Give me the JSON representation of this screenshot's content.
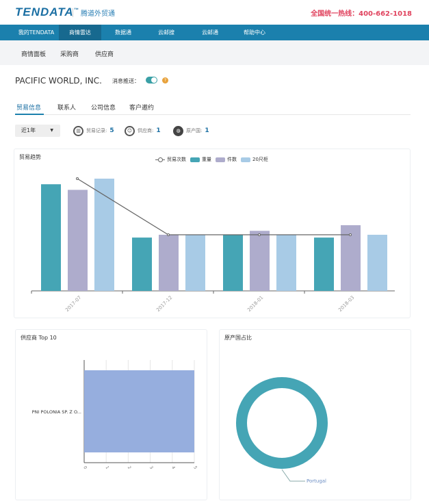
{
  "header": {
    "logo": "TENDATA",
    "logo_tm": "™",
    "slogan": "腾道外贸通",
    "hotline": "全国统一热线：400-662-1018"
  },
  "nav": {
    "items": [
      {
        "label": "我的TENDATA"
      },
      {
        "label": "商情雷达",
        "active": true
      },
      {
        "label": "数据通"
      },
      {
        "label": "云邮搜"
      },
      {
        "label": "云邮通"
      },
      {
        "label": "帮助中心"
      }
    ]
  },
  "subnav": {
    "items": [
      {
        "label": "商情面板"
      },
      {
        "label": "采购商"
      },
      {
        "label": "供应商"
      }
    ]
  },
  "company": {
    "name": "PACIFIC WORLD, INC.",
    "push_label": "消息推送：",
    "push_on": true
  },
  "tabs": [
    {
      "label": "贸易信息",
      "active": true
    },
    {
      "label": "联系人"
    },
    {
      "label": "公司信息"
    },
    {
      "label": "客户邀约"
    }
  ],
  "filter": {
    "range": "近1年"
  },
  "stats": [
    {
      "icon": "chart-icon",
      "label": "贸易记录:",
      "value": "5"
    },
    {
      "icon": "person-icon",
      "label": "供应商:",
      "value": "1"
    },
    {
      "icon": "globe-icon",
      "label": "原产国:",
      "value": "1"
    }
  ],
  "colors": {
    "nav": "#1b80ad",
    "quantity": "#45a5b5",
    "pieces": "#aeaccc",
    "container20": "#a8cbe6",
    "supplier_bar": "#96aede",
    "donut": "#45a5b5"
  },
  "chart_data": [
    {
      "type": "bar",
      "title": "贸易趋势",
      "categories": [
        "2017-07",
        "2017-12",
        "2018-01",
        "2018-03"
      ],
      "series": [
        {
          "name": "贸易次数",
          "type": "line",
          "values": [
            2,
            1,
            1,
            1
          ]
        },
        {
          "name": "重量",
          "values": [
            1.9,
            0.95,
            1.0,
            0.95
          ]
        },
        {
          "name": "件数",
          "values": [
            1.8,
            1.0,
            1.07,
            1.17
          ]
        },
        {
          "name": "20尺柜",
          "values": [
            2.0,
            1.0,
            1.0,
            1.0
          ]
        }
      ],
      "legend": "top-center"
    },
    {
      "type": "bar",
      "orientation": "horizontal",
      "title": "供应商 Top 10",
      "categories": [
        "PNI POLONIA SP. Z O..."
      ],
      "values": [
        5
      ],
      "xlim": [
        0,
        5
      ],
      "xticks": [
        "0",
        "1",
        "2",
        "3",
        "4",
        "5"
      ]
    },
    {
      "type": "pie",
      "title": "原产国占比",
      "labels": [
        "Portugal"
      ],
      "values": [
        100
      ],
      "donut": true
    }
  ]
}
